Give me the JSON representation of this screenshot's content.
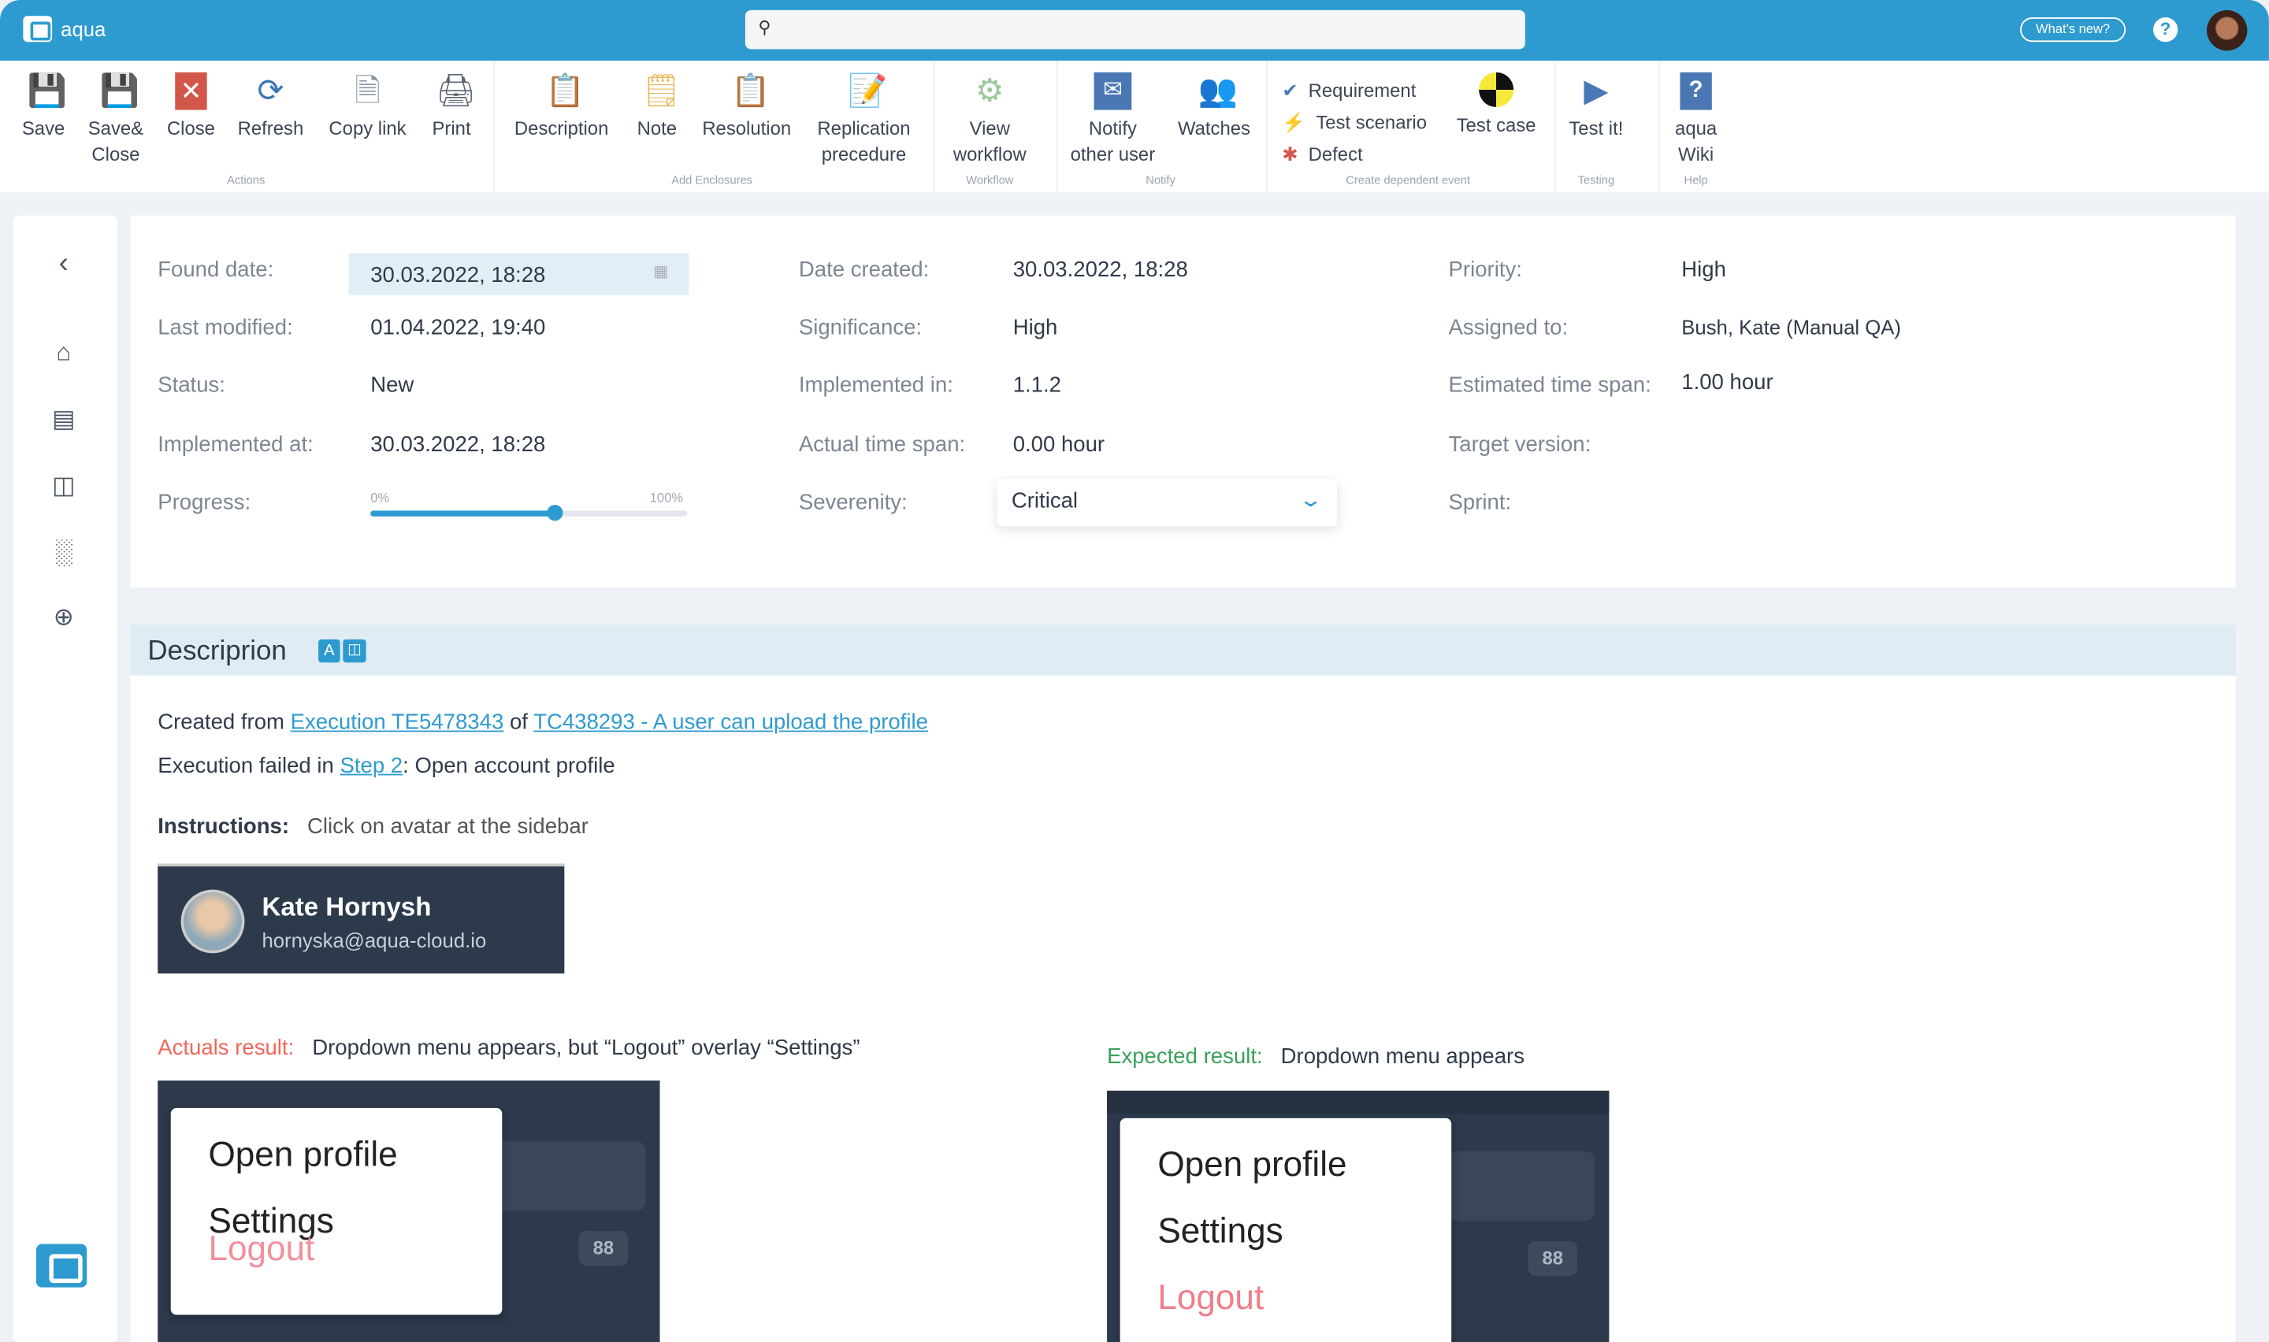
{
  "header": {
    "app_name": "aqua",
    "search_placeholder": "",
    "whats_new": "What's new?",
    "help": "?"
  },
  "toolbar": {
    "actions": {
      "group": "Actions",
      "items": [
        {
          "label": "Save",
          "icon": "save-icon"
        },
        {
          "label": "Save& Close",
          "icon": "save-close-icon"
        },
        {
          "label": "Close",
          "icon": "close-icon"
        },
        {
          "label": "Refresh",
          "icon": "refresh-icon"
        },
        {
          "label": "Copy link",
          "icon": "copy-link-icon"
        },
        {
          "label": "Print",
          "icon": "print-icon"
        }
      ]
    },
    "enclosures": {
      "group": "Add Enclosures",
      "items": [
        {
          "label": "Description",
          "icon": "clipboard-icon"
        },
        {
          "label": "Note",
          "icon": "note-icon"
        },
        {
          "label": "Resolution",
          "icon": "resolution-icon"
        },
        {
          "label": "Replication precedure",
          "icon": "replication-icon"
        }
      ]
    },
    "workflow": {
      "group": "Workflow",
      "items": [
        {
          "label": "View workflow",
          "icon": "workflow-icon"
        }
      ]
    },
    "notify": {
      "group": "Notify",
      "items": [
        {
          "label": "Notify other user",
          "icon": "mail-icon"
        },
        {
          "label": "Watches",
          "icon": "users-icon"
        }
      ]
    },
    "dependent": {
      "group": "Create dependent event",
      "items": [
        {
          "label": "Requirement"
        },
        {
          "label": "Test scenario"
        },
        {
          "label": "Defect"
        },
        {
          "label": "Test case"
        }
      ]
    },
    "testing": {
      "group": "Testing",
      "items": [
        {
          "label": "Test it!"
        }
      ]
    },
    "help": {
      "group": "Help",
      "items": [
        {
          "label": "aqua Wiki"
        }
      ]
    }
  },
  "fields": {
    "found_date": {
      "label": "Found date:",
      "value": "30.03.2022, 18:28"
    },
    "last_modified": {
      "label": "Last modified:",
      "value": "01.04.2022, 19:40"
    },
    "status": {
      "label": "Status:",
      "value": "New"
    },
    "implemented_at": {
      "label": "Implemented at:",
      "value": "30.03.2022, 18:28"
    },
    "progress": {
      "label": "Progress:",
      "min": "0%",
      "max": "100%",
      "percent": 58
    },
    "date_created": {
      "label": "Date created:",
      "value": "30.03.2022, 18:28"
    },
    "significance": {
      "label": "Significance:",
      "value": "High"
    },
    "implemented_in": {
      "label": "Implemented in:",
      "value": "1.1.2"
    },
    "actual_time": {
      "label": "Actual time span:",
      "value": "0.00 hour"
    },
    "severity": {
      "label": "Severenity:",
      "value": "Critical"
    },
    "priority": {
      "label": "Priority:",
      "value": "High"
    },
    "assigned_to": {
      "label": "Assigned to:",
      "value": "Bush, Kate (Manual QA)"
    },
    "estimated": {
      "label": "Estimated time span:",
      "value": "1.00 hour"
    },
    "target_version": {
      "label": "Target version:",
      "value": ""
    },
    "sprint": {
      "label": "Sprint:",
      "value": ""
    }
  },
  "description": {
    "title": "Descriprion",
    "created_from": "Created from",
    "exec_link": "Execution TE5478343",
    "of": "of",
    "tc_link": "TC438293 - A user can upload the profile",
    "failed_in": "Execution failed in",
    "step_link": "Step 2",
    "step_text": ": Open account profile",
    "instructions_label": "Instructions:",
    "instructions": "Click on avatar at the sidebar",
    "profile_name": "Kate Hornysh",
    "profile_email": "hornyska@aqua-cloud.io",
    "actual_label": "Actuals result:",
    "actual": "Dropdown menu appears, but “Logout” overlay “Settings”",
    "expected_label": "Expected result:",
    "expected": "Dropdown menu appears",
    "menu": {
      "open_profile": "Open profile",
      "settings": "Settings",
      "logout": "Logout",
      "badge": "88"
    }
  },
  "colors": {
    "accent": "#2e9bd0",
    "actual": "#f0665a",
    "expected": "#3aa05a",
    "logout": "#f07d8a"
  }
}
